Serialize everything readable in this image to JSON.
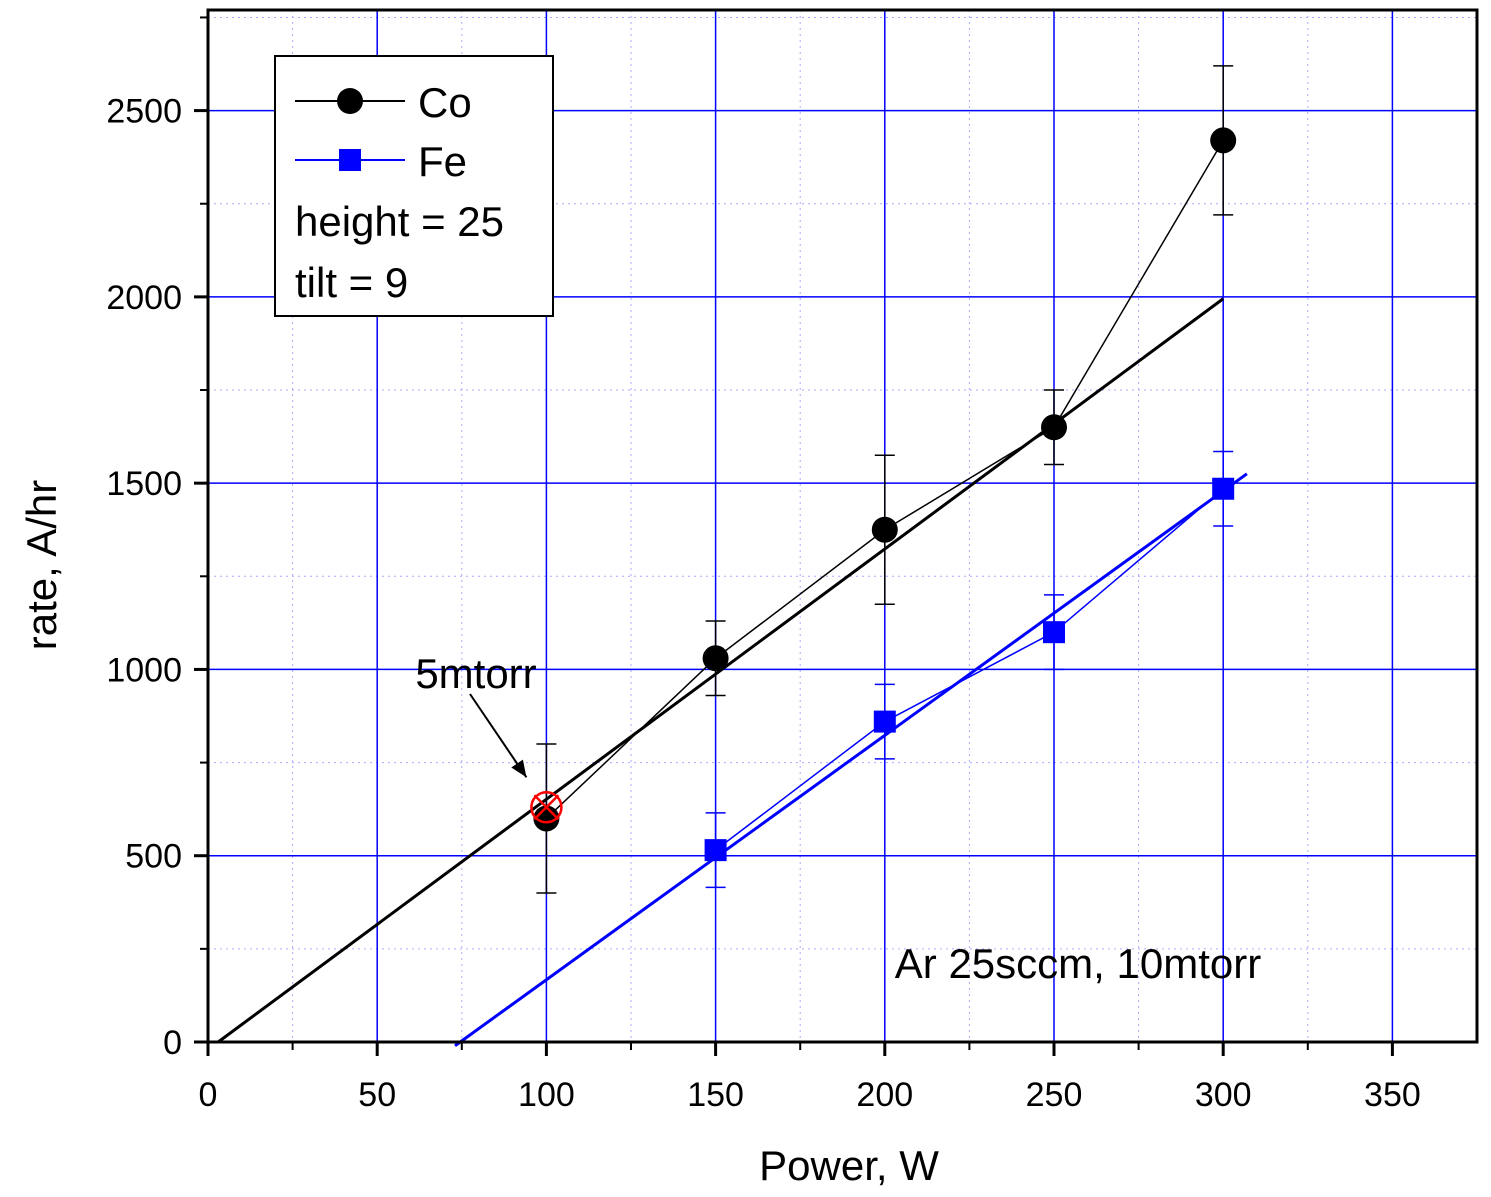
{
  "chart_data": {
    "type": "scatter",
    "xlabel": "Power, W",
    "ylabel": "rate, A/hr",
    "xlim": [
      0,
      375
    ],
    "ylim": [
      0,
      2770
    ],
    "x_ticks": [
      "0",
      "50",
      "100",
      "150",
      "200",
      "250",
      "300",
      "350"
    ],
    "x_tick_values": [
      0,
      50,
      100,
      150,
      200,
      250,
      300,
      350
    ],
    "y_ticks": [
      "0",
      "500",
      "1000",
      "1500",
      "2000",
      "2500"
    ],
    "y_tick_values": [
      0,
      500,
      1000,
      1500,
      2000,
      2500
    ],
    "grid": true,
    "grid_major_color": "#0000ff",
    "grid_minor_color": "#aaaaff",
    "legend_position": "top-left",
    "series": [
      {
        "name": "Co",
        "color": "#000000",
        "marker": "circle",
        "x": [
          100,
          150,
          200,
          250,
          300
        ],
        "y": [
          600,
          1030,
          1375,
          1650,
          2420
        ],
        "err": [
          200,
          100,
          200,
          100,
          200
        ],
        "fit": {
          "x": [
            3,
            300
          ],
          "y": [
            0,
            1995
          ]
        }
      },
      {
        "name": "Fe",
        "color": "#0000ff",
        "marker": "square",
        "x": [
          150,
          200,
          250,
          300
        ],
        "y": [
          515,
          860,
          1100,
          1485
        ],
        "err": [
          100,
          100,
          100,
          100
        ],
        "fit": {
          "x": [
            73,
            307
          ],
          "y": [
            -10,
            1525
          ]
        }
      }
    ],
    "annotations": {
      "condition_text": "Ar 25sccm, 10mtorr",
      "pressure_label": "5mtorr",
      "pressure_point": {
        "x": 100,
        "y": 630
      },
      "pressure_marker_color": "#ff0000"
    },
    "legend_notes": [
      "height = 25",
      "tilt = 9"
    ]
  }
}
